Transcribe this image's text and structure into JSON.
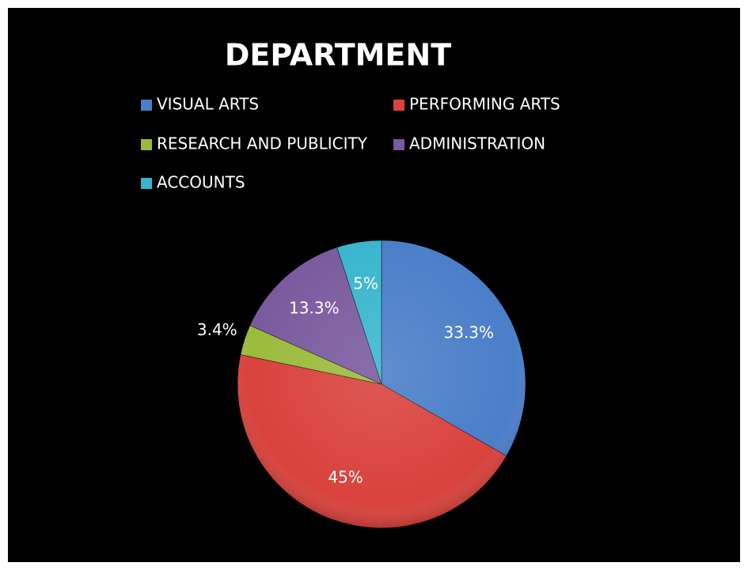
{
  "chart_data": {
    "type": "pie",
    "title": "DEPARTMENT",
    "categories": [
      "VISUAL ARTS",
      "PERFORMING ARTS",
      "RESEARCH AND PUBLICITY",
      "ADMINISTRATION",
      "ACCOUNTS"
    ],
    "values": [
      33.3,
      45,
      3.4,
      13.3,
      5
    ],
    "value_labels": [
      "33.3%",
      "45%",
      "3.4%",
      "13.3%",
      "5%"
    ],
    "colors": [
      "#4a7ec8",
      "#d9423d",
      "#9bbb3c",
      "#7a5a9e",
      "#3ab5cf"
    ],
    "legend": "top"
  }
}
